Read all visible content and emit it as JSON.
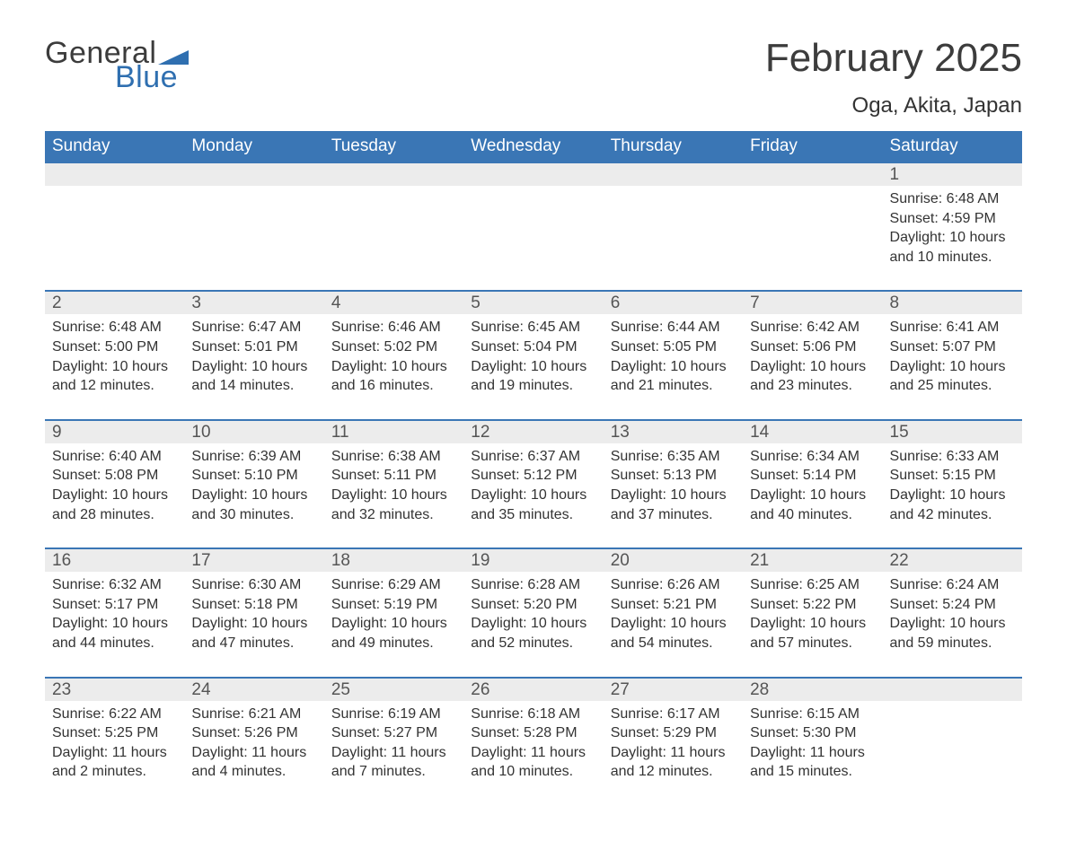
{
  "logo": {
    "general": "General",
    "blue": "Blue",
    "flag_color": "#2f6fb0"
  },
  "title": "February 2025",
  "location": "Oga, Akita, Japan",
  "colors": {
    "header_bg": "#3a76b5",
    "header_text": "#ffffff",
    "daynum_bg": "#ececec",
    "daynum_border": "#3a76b5",
    "text": "#333333",
    "logo_gray": "#3c3c3c",
    "logo_blue": "#2f6fb0",
    "page_bg": "#ffffff"
  },
  "days_of_week": [
    "Sunday",
    "Monday",
    "Tuesday",
    "Wednesday",
    "Thursday",
    "Friday",
    "Saturday"
  ],
  "weeks": [
    [
      {},
      {},
      {},
      {},
      {},
      {},
      {
        "n": "1",
        "sunrise": "Sunrise: 6:48 AM",
        "sunset": "Sunset: 4:59 PM",
        "daylight1": "Daylight: 10 hours",
        "daylight2": "and 10 minutes."
      }
    ],
    [
      {
        "n": "2",
        "sunrise": "Sunrise: 6:48 AM",
        "sunset": "Sunset: 5:00 PM",
        "daylight1": "Daylight: 10 hours",
        "daylight2": "and 12 minutes."
      },
      {
        "n": "3",
        "sunrise": "Sunrise: 6:47 AM",
        "sunset": "Sunset: 5:01 PM",
        "daylight1": "Daylight: 10 hours",
        "daylight2": "and 14 minutes."
      },
      {
        "n": "4",
        "sunrise": "Sunrise: 6:46 AM",
        "sunset": "Sunset: 5:02 PM",
        "daylight1": "Daylight: 10 hours",
        "daylight2": "and 16 minutes."
      },
      {
        "n": "5",
        "sunrise": "Sunrise: 6:45 AM",
        "sunset": "Sunset: 5:04 PM",
        "daylight1": "Daylight: 10 hours",
        "daylight2": "and 19 minutes."
      },
      {
        "n": "6",
        "sunrise": "Sunrise: 6:44 AM",
        "sunset": "Sunset: 5:05 PM",
        "daylight1": "Daylight: 10 hours",
        "daylight2": "and 21 minutes."
      },
      {
        "n": "7",
        "sunrise": "Sunrise: 6:42 AM",
        "sunset": "Sunset: 5:06 PM",
        "daylight1": "Daylight: 10 hours",
        "daylight2": "and 23 minutes."
      },
      {
        "n": "8",
        "sunrise": "Sunrise: 6:41 AM",
        "sunset": "Sunset: 5:07 PM",
        "daylight1": "Daylight: 10 hours",
        "daylight2": "and 25 minutes."
      }
    ],
    [
      {
        "n": "9",
        "sunrise": "Sunrise: 6:40 AM",
        "sunset": "Sunset: 5:08 PM",
        "daylight1": "Daylight: 10 hours",
        "daylight2": "and 28 minutes."
      },
      {
        "n": "10",
        "sunrise": "Sunrise: 6:39 AM",
        "sunset": "Sunset: 5:10 PM",
        "daylight1": "Daylight: 10 hours",
        "daylight2": "and 30 minutes."
      },
      {
        "n": "11",
        "sunrise": "Sunrise: 6:38 AM",
        "sunset": "Sunset: 5:11 PM",
        "daylight1": "Daylight: 10 hours",
        "daylight2": "and 32 minutes."
      },
      {
        "n": "12",
        "sunrise": "Sunrise: 6:37 AM",
        "sunset": "Sunset: 5:12 PM",
        "daylight1": "Daylight: 10 hours",
        "daylight2": "and 35 minutes."
      },
      {
        "n": "13",
        "sunrise": "Sunrise: 6:35 AM",
        "sunset": "Sunset: 5:13 PM",
        "daylight1": "Daylight: 10 hours",
        "daylight2": "and 37 minutes."
      },
      {
        "n": "14",
        "sunrise": "Sunrise: 6:34 AM",
        "sunset": "Sunset: 5:14 PM",
        "daylight1": "Daylight: 10 hours",
        "daylight2": "and 40 minutes."
      },
      {
        "n": "15",
        "sunrise": "Sunrise: 6:33 AM",
        "sunset": "Sunset: 5:15 PM",
        "daylight1": "Daylight: 10 hours",
        "daylight2": "and 42 minutes."
      }
    ],
    [
      {
        "n": "16",
        "sunrise": "Sunrise: 6:32 AM",
        "sunset": "Sunset: 5:17 PM",
        "daylight1": "Daylight: 10 hours",
        "daylight2": "and 44 minutes."
      },
      {
        "n": "17",
        "sunrise": "Sunrise: 6:30 AM",
        "sunset": "Sunset: 5:18 PM",
        "daylight1": "Daylight: 10 hours",
        "daylight2": "and 47 minutes."
      },
      {
        "n": "18",
        "sunrise": "Sunrise: 6:29 AM",
        "sunset": "Sunset: 5:19 PM",
        "daylight1": "Daylight: 10 hours",
        "daylight2": "and 49 minutes."
      },
      {
        "n": "19",
        "sunrise": "Sunrise: 6:28 AM",
        "sunset": "Sunset: 5:20 PM",
        "daylight1": "Daylight: 10 hours",
        "daylight2": "and 52 minutes."
      },
      {
        "n": "20",
        "sunrise": "Sunrise: 6:26 AM",
        "sunset": "Sunset: 5:21 PM",
        "daylight1": "Daylight: 10 hours",
        "daylight2": "and 54 minutes."
      },
      {
        "n": "21",
        "sunrise": "Sunrise: 6:25 AM",
        "sunset": "Sunset: 5:22 PM",
        "daylight1": "Daylight: 10 hours",
        "daylight2": "and 57 minutes."
      },
      {
        "n": "22",
        "sunrise": "Sunrise: 6:24 AM",
        "sunset": "Sunset: 5:24 PM",
        "daylight1": "Daylight: 10 hours",
        "daylight2": "and 59 minutes."
      }
    ],
    [
      {
        "n": "23",
        "sunrise": "Sunrise: 6:22 AM",
        "sunset": "Sunset: 5:25 PM",
        "daylight1": "Daylight: 11 hours",
        "daylight2": "and 2 minutes."
      },
      {
        "n": "24",
        "sunrise": "Sunrise: 6:21 AM",
        "sunset": "Sunset: 5:26 PM",
        "daylight1": "Daylight: 11 hours",
        "daylight2": "and 4 minutes."
      },
      {
        "n": "25",
        "sunrise": "Sunrise: 6:19 AM",
        "sunset": "Sunset: 5:27 PM",
        "daylight1": "Daylight: 11 hours",
        "daylight2": "and 7 minutes."
      },
      {
        "n": "26",
        "sunrise": "Sunrise: 6:18 AM",
        "sunset": "Sunset: 5:28 PM",
        "daylight1": "Daylight: 11 hours",
        "daylight2": "and 10 minutes."
      },
      {
        "n": "27",
        "sunrise": "Sunrise: 6:17 AM",
        "sunset": "Sunset: 5:29 PM",
        "daylight1": "Daylight: 11 hours",
        "daylight2": "and 12 minutes."
      },
      {
        "n": "28",
        "sunrise": "Sunrise: 6:15 AM",
        "sunset": "Sunset: 5:30 PM",
        "daylight1": "Daylight: 11 hours",
        "daylight2": "and 15 minutes."
      },
      {}
    ]
  ]
}
